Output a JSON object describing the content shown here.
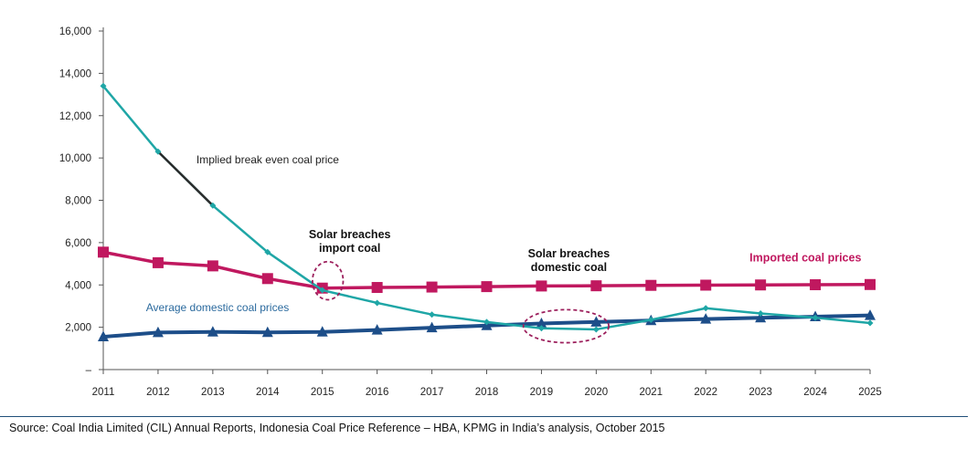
{
  "chart_data": {
    "type": "line",
    "title": "",
    "xlabel": "",
    "ylabel": "",
    "x": [
      2011,
      2012,
      2013,
      2014,
      2015,
      2016,
      2017,
      2018,
      2019,
      2020,
      2021,
      2022,
      2023,
      2024,
      2025
    ],
    "x_tick_labels": [
      "2011",
      "2012",
      "2013",
      "2014",
      "2015",
      "2016",
      "2017",
      "2018",
      "2019",
      "2020",
      "2021",
      "2022",
      "2023",
      "2024",
      "2025"
    ],
    "ylim": [
      0,
      16000
    ],
    "y_ticks": [
      0,
      2000,
      4000,
      6000,
      8000,
      10000,
      12000,
      14000,
      16000
    ],
    "y_tick_labels": [
      "–",
      "2,000",
      "4,000",
      "6,000",
      "8,000",
      "10,000",
      "12,000",
      "14,000",
      "16,000"
    ],
    "grid": false,
    "legend": "none (series labelled directly on chart)",
    "series": [
      {
        "name": "Implied break even coal price",
        "color": "#1fa6a6",
        "marker": "diamond",
        "values": [
          13400,
          10300,
          7750,
          5550,
          3750,
          3150,
          2600,
          2250,
          1950,
          1900,
          2350,
          2900,
          2650,
          2450,
          2200
        ]
      },
      {
        "name": "Imported coal prices",
        "color": "#c0185f",
        "marker": "square",
        "values": [
          5550,
          5050,
          4900,
          4300,
          3850,
          3880,
          3900,
          3920,
          3950,
          3960,
          3980,
          3990,
          4000,
          4010,
          4020
        ]
      },
      {
        "name": "Average domestic coal prices",
        "color": "#1d4e89",
        "marker": "triangle",
        "values": [
          1550,
          1750,
          1780,
          1760,
          1780,
          1870,
          1980,
          2080,
          2180,
          2250,
          2320,
          2390,
          2450,
          2500,
          2560
        ]
      }
    ],
    "highlight_segment": {
      "series": 0,
      "from_x": 2012,
      "to_x": 2013,
      "color": "#2b2b2b"
    },
    "annotations": [
      {
        "text": "Implied break even coal price",
        "x": 2012.7,
        "y": 9750,
        "color": "#222222",
        "bold": false
      },
      {
        "text": "Average domestic coal prices",
        "x": 2011.78,
        "y": 2750,
        "color": "#2b6a9e",
        "bold": false
      },
      {
        "text": "Imported coal prices",
        "x": 2022.8,
        "y": 5100,
        "color": "#c0185f",
        "bold": false
      },
      {
        "lines": [
          "Solar breaches",
          "import coal"
        ],
        "x": 2015.5,
        "y": 6200,
        "color": "#111111",
        "bold": true
      },
      {
        "lines": [
          "Solar breaches",
          "domestic coal"
        ],
        "x": 2019.5,
        "y": 5300,
        "color": "#111111",
        "bold": true
      }
    ],
    "highlight_circles": [
      {
        "x": 2015.1,
        "y": 4200,
        "rx_years": 0.28,
        "ry_val": 900,
        "color": "#9c1f5c"
      },
      {
        "x": 2019.45,
        "y": 2050,
        "rx_years": 0.78,
        "ry_val": 780,
        "color": "#9c1f5c"
      }
    ]
  },
  "footer": {
    "source": "Source: Coal India Limited (CIL) Annual Reports, Indonesia Coal Price Reference – HBA, KPMG in India’s analysis, October 2015"
  }
}
